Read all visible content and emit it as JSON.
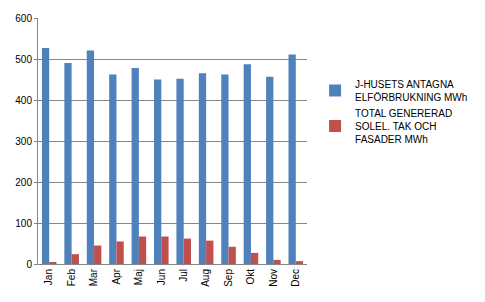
{
  "chart_data": {
    "type": "bar",
    "categories": [
      "Jan",
      "Feb",
      "Mar",
      "Apr",
      "Maj",
      "Jun",
      "Jul",
      "Aug",
      "Sep",
      "Okt",
      "Nov",
      "Dec"
    ],
    "series": [
      {
        "name": "J-HUSETS ANTAGNA ELFÖRBRUKNING MWh",
        "color": "#4f81bd",
        "values": [
          527,
          490,
          521,
          462,
          478,
          450,
          452,
          465,
          462,
          487,
          457,
          511
        ]
      },
      {
        "name": "TOTAL GENERERAD SOLEL. TAK OCH FASADER MWh",
        "color": "#c0504d",
        "values": [
          5,
          24,
          45,
          55,
          67,
          67,
          62,
          57,
          42,
          27,
          10,
          7
        ]
      }
    ],
    "ylim": [
      0,
      600
    ],
    "yticks": [
      0,
      100,
      200,
      300,
      400,
      500,
      600
    ],
    "grid": true,
    "legend": "right"
  }
}
